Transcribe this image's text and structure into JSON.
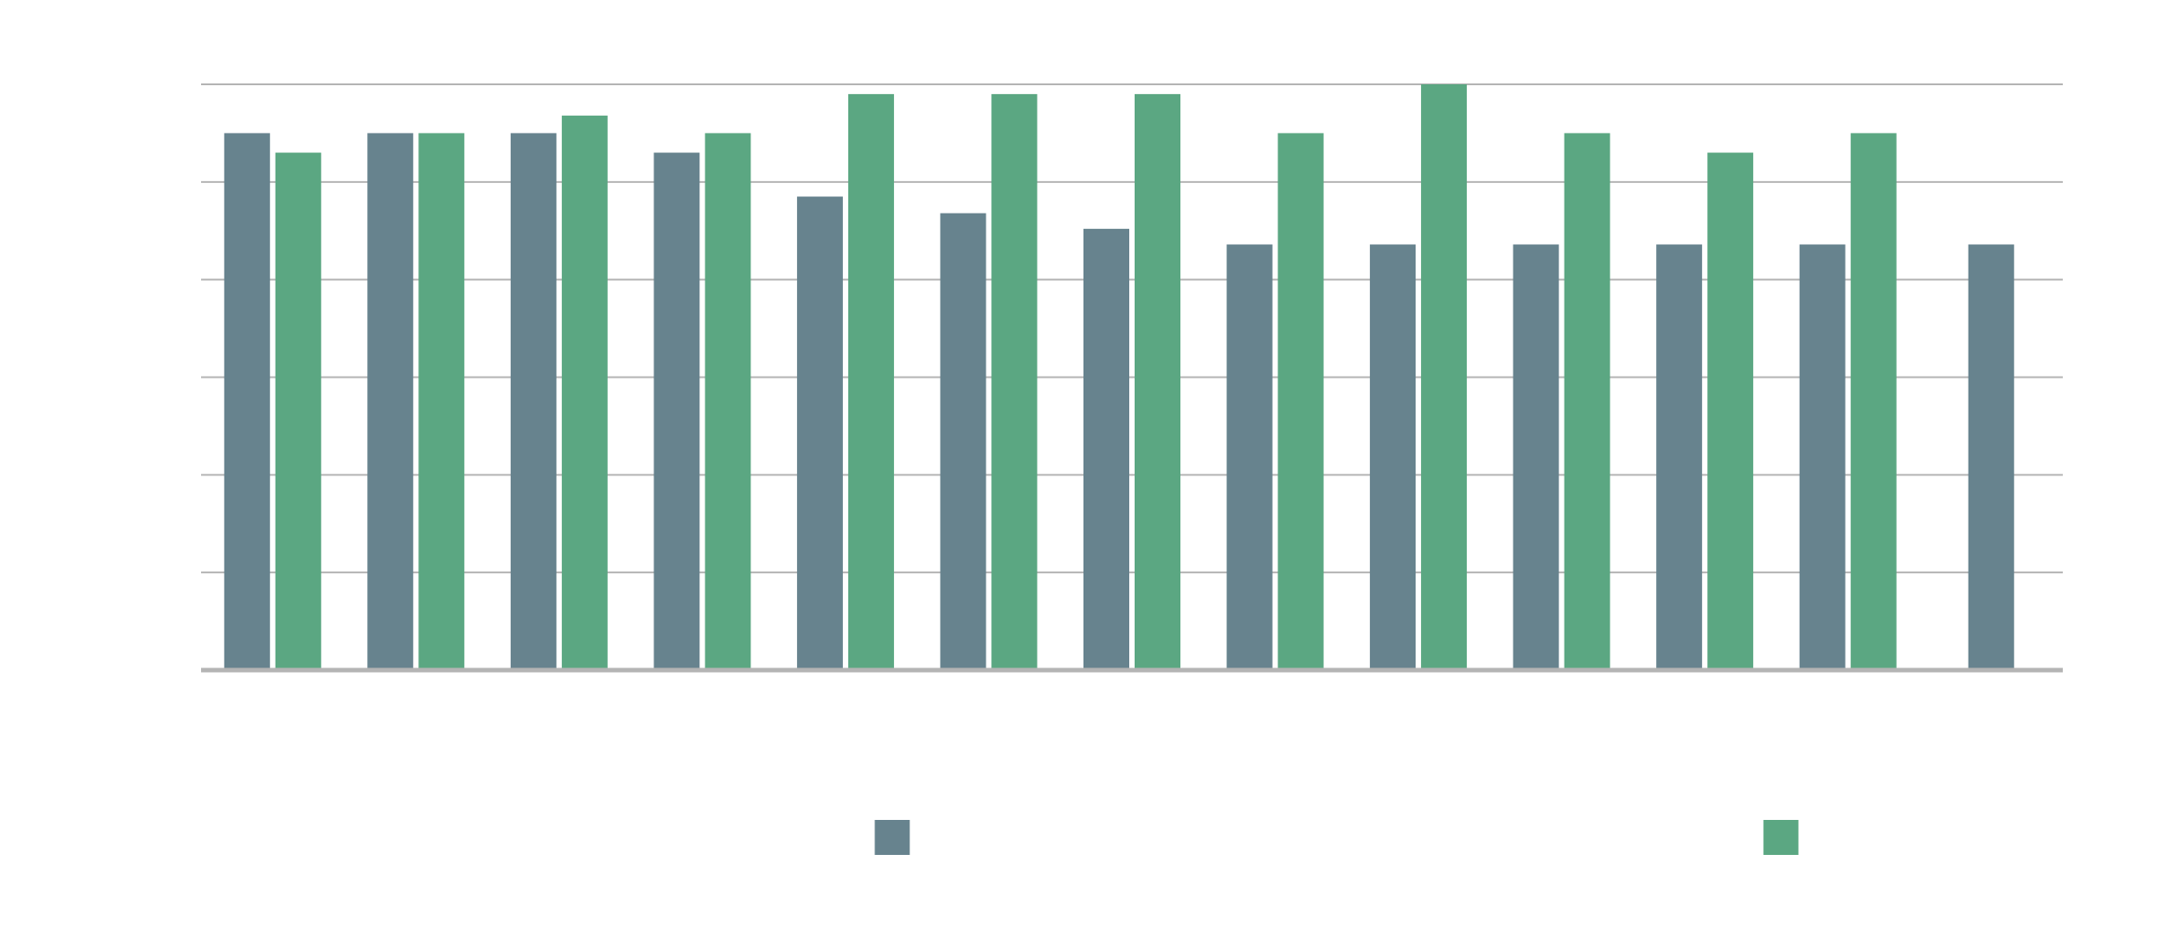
{
  "chart_data": {
    "type": "bar",
    "title": "",
    "xlabel": "",
    "ylabel": "",
    "categories": [
      "",
      "",
      "",
      "",
      "",
      "",
      "",
      "",
      "",
      "",
      "",
      "",
      ""
    ],
    "ylim": [
      0,
      6
    ],
    "grid": true,
    "legend_position": "bottom",
    "series": [
      {
        "name": "",
        "color": "#67838e",
        "values": [
          5.5,
          5.5,
          5.5,
          5.3,
          4.85,
          4.68,
          4.52,
          4.36,
          4.36,
          4.36,
          4.36,
          4.36,
          4.36
        ]
      },
      {
        "name": "",
        "color": "#5ba782",
        "values": [
          5.3,
          5.5,
          5.68,
          5.5,
          5.9,
          5.9,
          5.9,
          5.5,
          6.0,
          5.5,
          5.3,
          5.5,
          null
        ]
      }
    ]
  }
}
